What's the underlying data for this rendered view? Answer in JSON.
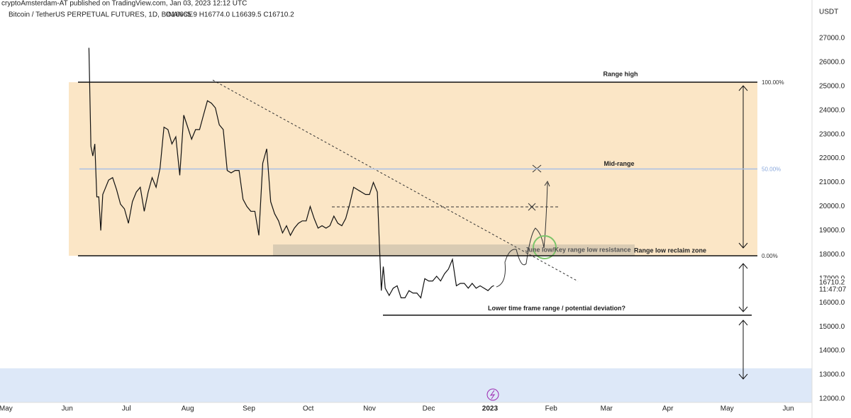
{
  "header": {
    "published": "cryptoAmsterdam-AT  published on TradingView.com, Jan 03, 2023 12:12 UTC",
    "symbol": "Bitcoin / TetherUS PERPETUAL FUTURES, 1D, BINANCE",
    "ohlc": "O16665.9  H16774.0  L16639.5  C16710.2"
  },
  "chart_data": {
    "type": "line",
    "currency": "USDT",
    "color": "#111111",
    "grid": false,
    "xlim": [
      -3,
      408
    ],
    "ylim": [
      11850,
      28590
    ],
    "xticks": [
      {
        "value": 0,
        "label": "May"
      },
      {
        "value": 31,
        "label": "Jun"
      },
      {
        "value": 61,
        "label": "Jul"
      },
      {
        "value": 92,
        "label": "Aug"
      },
      {
        "value": 123,
        "label": "Sep"
      },
      {
        "value": 153,
        "label": "Oct"
      },
      {
        "value": 184,
        "label": "Nov"
      },
      {
        "value": 214,
        "label": "Dec"
      },
      {
        "value": 245,
        "label": "2023"
      },
      {
        "value": 276,
        "label": "Feb"
      },
      {
        "value": 304,
        "label": "Mar"
      },
      {
        "value": 335,
        "label": "Apr"
      },
      {
        "value": 365,
        "label": "May"
      },
      {
        "value": 396,
        "label": "Jun"
      }
    ],
    "yticks": [
      {
        "value": 12000,
        "label": "12000.0"
      },
      {
        "value": 13000,
        "label": "13000.0"
      },
      {
        "value": 14000,
        "label": "14000.0"
      },
      {
        "value": 15000,
        "label": "15000.0"
      },
      {
        "value": 16000,
        "label": "16000.0"
      },
      {
        "value": 17000,
        "label": "17000.0"
      },
      {
        "value": 18000,
        "label": "18000.0"
      },
      {
        "value": 19000,
        "label": "19000.0"
      },
      {
        "value": 20000,
        "label": "20000.0"
      },
      {
        "value": 21000,
        "label": "21000.0"
      },
      {
        "value": 22000,
        "label": "22000.0"
      },
      {
        "value": 23000,
        "label": "23000.0"
      },
      {
        "value": 24000,
        "label": "24000.0"
      },
      {
        "value": 25000,
        "label": "25000.0"
      },
      {
        "value": 26000,
        "label": "26000.0"
      },
      {
        "value": 27000,
        "label": "27000.0"
      }
    ],
    "series": [
      {
        "name": "BTCUSDT",
        "color": "#111111",
        "x": [
          42,
          43,
          44,
          45,
          46,
          47,
          48,
          49,
          50,
          52,
          54,
          56,
          58,
          60,
          62,
          64,
          66,
          68,
          70,
          72,
          74,
          76,
          78,
          80,
          82,
          84,
          86,
          88,
          90,
          92,
          94,
          96,
          98,
          100,
          102,
          104,
          106,
          108,
          110,
          112,
          114,
          116,
          118,
          120,
          122,
          124,
          126,
          128,
          130,
          132,
          134,
          136,
          138,
          140,
          142,
          144,
          146,
          148,
          150,
          152,
          154,
          156,
          158,
          160,
          162,
          164,
          166,
          168,
          170,
          172,
          174,
          176,
          178,
          180,
          182,
          184,
          186,
          188,
          189,
          190,
          191,
          192,
          194,
          196,
          198,
          200,
          202,
          204,
          206,
          208,
          210,
          212,
          214,
          216,
          218,
          220,
          222,
          224,
          226,
          228,
          230,
          232,
          234,
          236,
          238,
          240,
          242,
          244,
          246,
          247
        ],
        "values": [
          26600,
          22500,
          22100,
          22600,
          20400,
          20400,
          19000,
          20500,
          20700,
          21100,
          21200,
          20700,
          20100,
          19900,
          19300,
          20200,
          20600,
          20800,
          19800,
          20600,
          21200,
          20800,
          21600,
          23300,
          23200,
          22600,
          22900,
          21300,
          23800,
          23300,
          22800,
          23200,
          23200,
          23800,
          24400,
          24300,
          24100,
          23400,
          23200,
          21500,
          21400,
          21500,
          21500,
          20300,
          20000,
          19800,
          19800,
          18800,
          21800,
          22400,
          20200,
          19700,
          19400,
          18900,
          19200,
          18800,
          19100,
          19300,
          19400,
          19400,
          20000,
          19500,
          19100,
          19200,
          19100,
          19200,
          19600,
          19300,
          19200,
          19500,
          20100,
          20800,
          20700,
          20600,
          20500,
          20500,
          21000,
          20600,
          18500,
          16500,
          17500,
          16600,
          16300,
          16600,
          16700,
          16200,
          16200,
          16500,
          16400,
          16400,
          16200,
          17000,
          16900,
          16900,
          17100,
          16900,
          17200,
          17400,
          17800,
          16700,
          16800,
          16800,
          16600,
          16800,
          16600,
          16700,
          16600,
          16500,
          16670,
          16710
        ]
      }
    ],
    "last_price": 16710.2,
    "countdown": "11:47:07",
    "levels": [
      {
        "name": "Range high",
        "value": 25170,
        "pct": "100.00%"
      },
      {
        "name": "Mid-range",
        "value": 21560,
        "pct": "50.00%"
      },
      {
        "name": "Range low reclaim zone",
        "value": 17950,
        "pct": "0.00%"
      },
      {
        "name": "Lower time frame range / potential deviation?",
        "value": 15480
      }
    ],
    "zone_label": "June low/Key range low resistance",
    "zone_top": 18420,
    "blue_zone": [
      11850,
      13270
    ]
  }
}
